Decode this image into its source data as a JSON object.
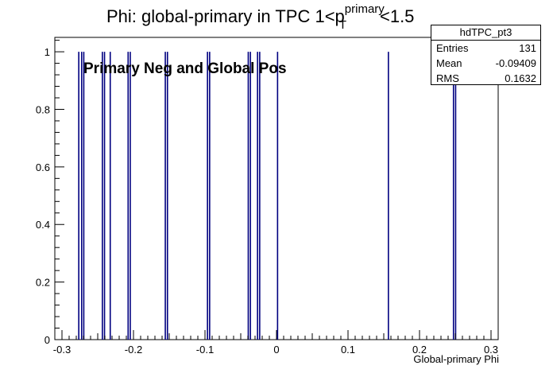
{
  "title": {
    "main": "Phi: global-primary in TPC 1<p",
    "sup": "primary",
    "sub": "T",
    "tail": "<1.5"
  },
  "stats": {
    "name": "hdTPC_pt3",
    "rows": [
      {
        "label": "Entries",
        "value": "131"
      },
      {
        "label": "Mean",
        "value": "-0.09409"
      },
      {
        "label": "RMS",
        "value": "0.1632"
      }
    ]
  },
  "annotation": "Primary Neg and Global Pos",
  "colors": {
    "hist": "#000080",
    "axis": "#000000"
  },
  "chart_data": {
    "type": "bar",
    "title": "Phi: global-primary in TPC 1<p_T^primary<1.5",
    "xlabel": "Global-primary Phi",
    "ylabel": "",
    "xlim": [
      -0.31,
      0.31
    ],
    "ylim": [
      0,
      1.05
    ],
    "x_ticks": [
      -0.3,
      -0.2,
      -0.1,
      0,
      0.1,
      0.2,
      0.3
    ],
    "x_tick_labels": [
      "-0.3",
      "-0.2",
      "-0.1",
      "0",
      "0.1",
      "0.2",
      "0.3"
    ],
    "y_ticks": [
      0,
      0.2,
      0.4,
      0.6,
      0.8,
      1
    ],
    "y_tick_labels": [
      "0",
      "0.2",
      "0.4",
      "0.6",
      "0.8",
      "1"
    ],
    "series": [
      {
        "x": [
          -0.2765,
          -0.2725,
          -0.2695,
          -0.2435,
          -0.2405,
          -0.2325,
          -0.2075,
          -0.2045,
          -0.1555,
          -0.1525,
          -0.0965,
          -0.0935,
          -0.0395,
          -0.0365,
          -0.0265,
          -0.0235,
          0.0015,
          0.1565,
          0.2475,
          0.2505
        ],
        "values": [
          1,
          1,
          1,
          1,
          1,
          1,
          1,
          1,
          1,
          1,
          1,
          1,
          1,
          1,
          1,
          1,
          1,
          1,
          1,
          1
        ]
      }
    ],
    "grid": false
  }
}
